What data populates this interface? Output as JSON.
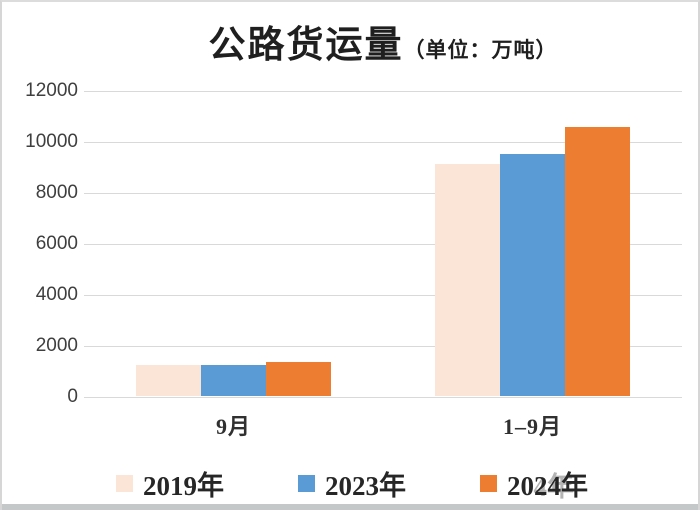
{
  "title": {
    "main": "公路货运量",
    "unit": "（单位：万吨）"
  },
  "chart_data": {
    "type": "bar",
    "categories": [
      "9月",
      "1–9月"
    ],
    "series": [
      {
        "name": "2019年",
        "color": "#FBE5D6",
        "values": [
          1200,
          9100
        ]
      },
      {
        "name": "2023年",
        "color": "#5B9BD5",
        "values": [
          1200,
          9500
        ]
      },
      {
        "name": "2024年",
        "color": "#ED7D31",
        "values": [
          1320,
          10550
        ]
      }
    ],
    "title": "公路货运量（单位：万吨）",
    "xlabel": "",
    "ylabel": "",
    "ylim": [
      0,
      12000
    ],
    "yticks": [
      0,
      2000,
      4000,
      6000,
      8000,
      10000,
      12000
    ],
    "grid": true,
    "legend_position": "bottom"
  },
  "legend": {
    "ghost_artifact_text": "4年"
  },
  "colors": {
    "series_2019": "#FBE5D6",
    "series_2023": "#5B9BD5",
    "series_2024": "#ED7D31",
    "gridline": "#d9d9d9",
    "tick_text": "#3f3f3f",
    "title_text": "#1f1f1f",
    "frame_border": "#d6d6d6",
    "bottom_band": "#c5c8c8"
  }
}
